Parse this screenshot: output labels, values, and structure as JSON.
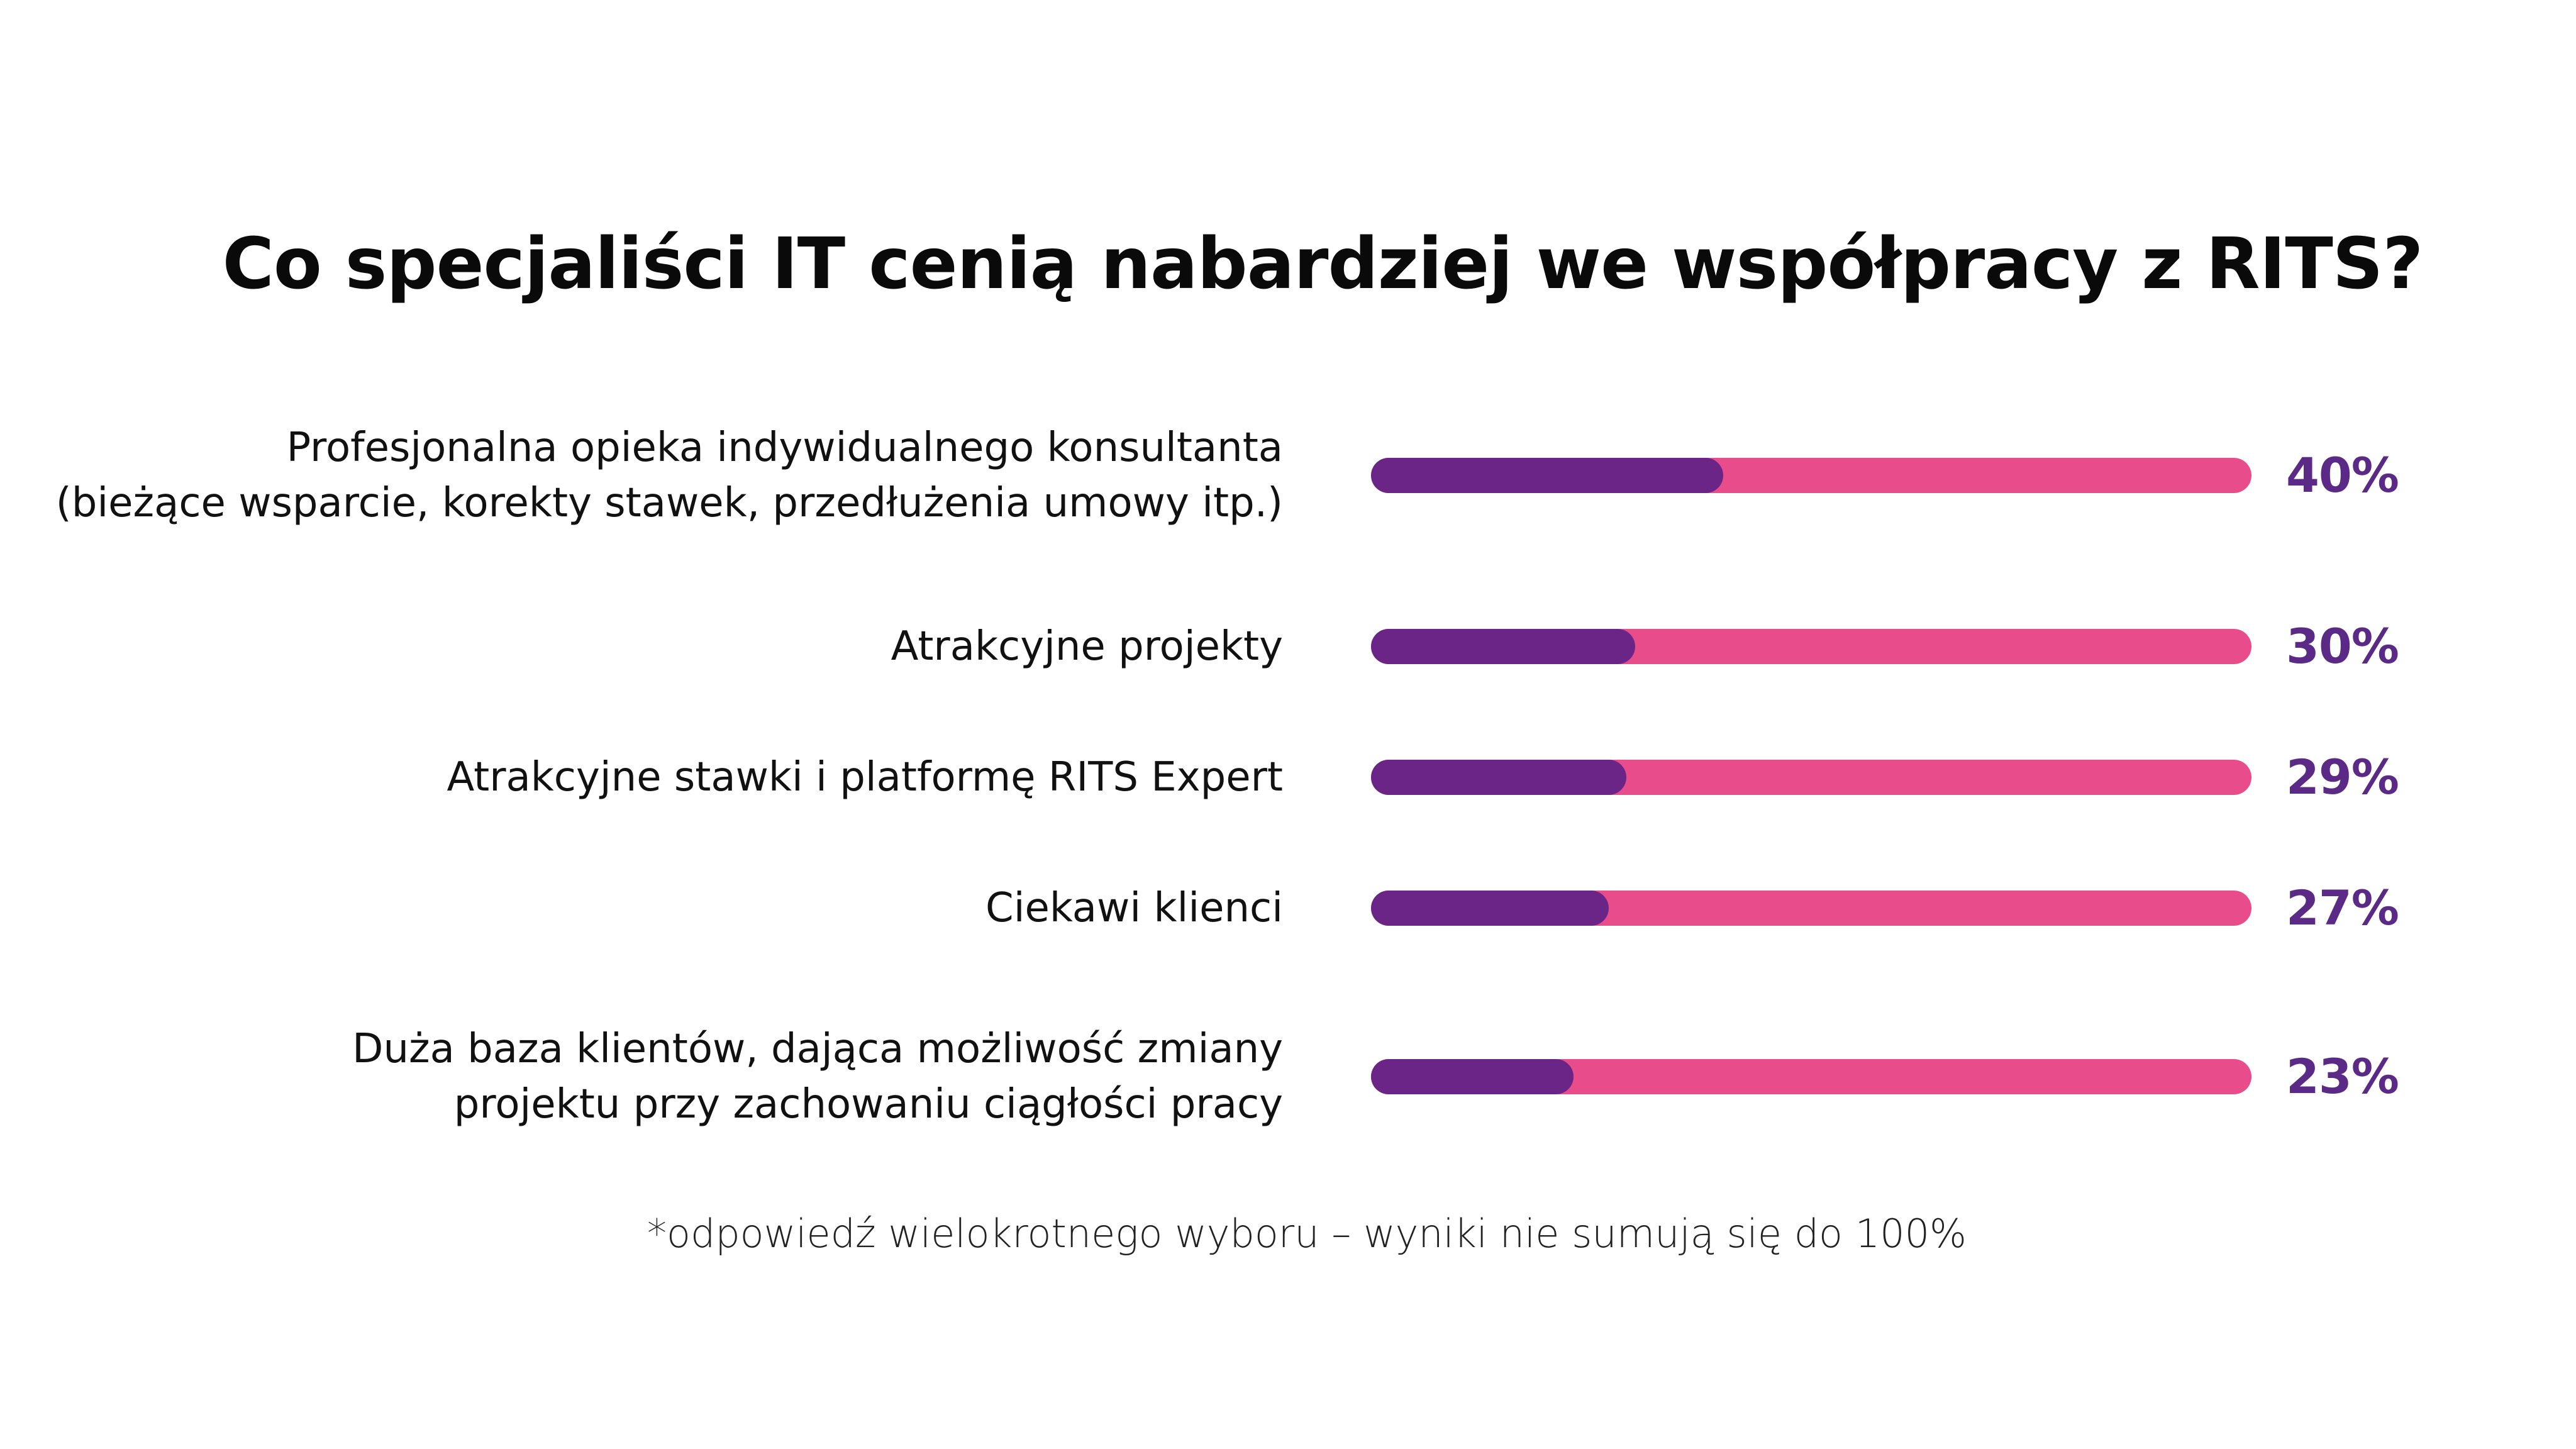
{
  "chart_data": {
    "type": "bar",
    "orientation": "horizontal",
    "title": "Co specjaliści IT cenią nabardziej we współpracy z RITS?",
    "categories": [
      [
        "Profesjonalna opieka indywidualnego konsultanta",
        "(bieżące wsparcie, korekty stawek, przedłużenia umowy itp.)"
      ],
      [
        "Atrakcyjne projekty"
      ],
      [
        "Atrakcyjne stawki i platformę RITS Expert"
      ],
      [
        "Ciekawi klienci"
      ],
      [
        "Duża baza klientów, dająca możliwość zmiany",
        "projektu przy zachowaniu ciągłości pracy"
      ]
    ],
    "values": [
      40,
      30,
      29,
      27,
      23
    ],
    "value_labels": [
      "40%",
      "30%",
      "29%",
      "27%",
      "23%"
    ],
    "xlim": [
      0,
      100
    ],
    "grid": false,
    "footnote": "*odpowiedź wielokrotnego wyboru – wyniki nie sumują się do 100%",
    "colors": {
      "fill": "#6b2586",
      "track": "#e84c8b",
      "value_text": "#5b2a86"
    }
  }
}
